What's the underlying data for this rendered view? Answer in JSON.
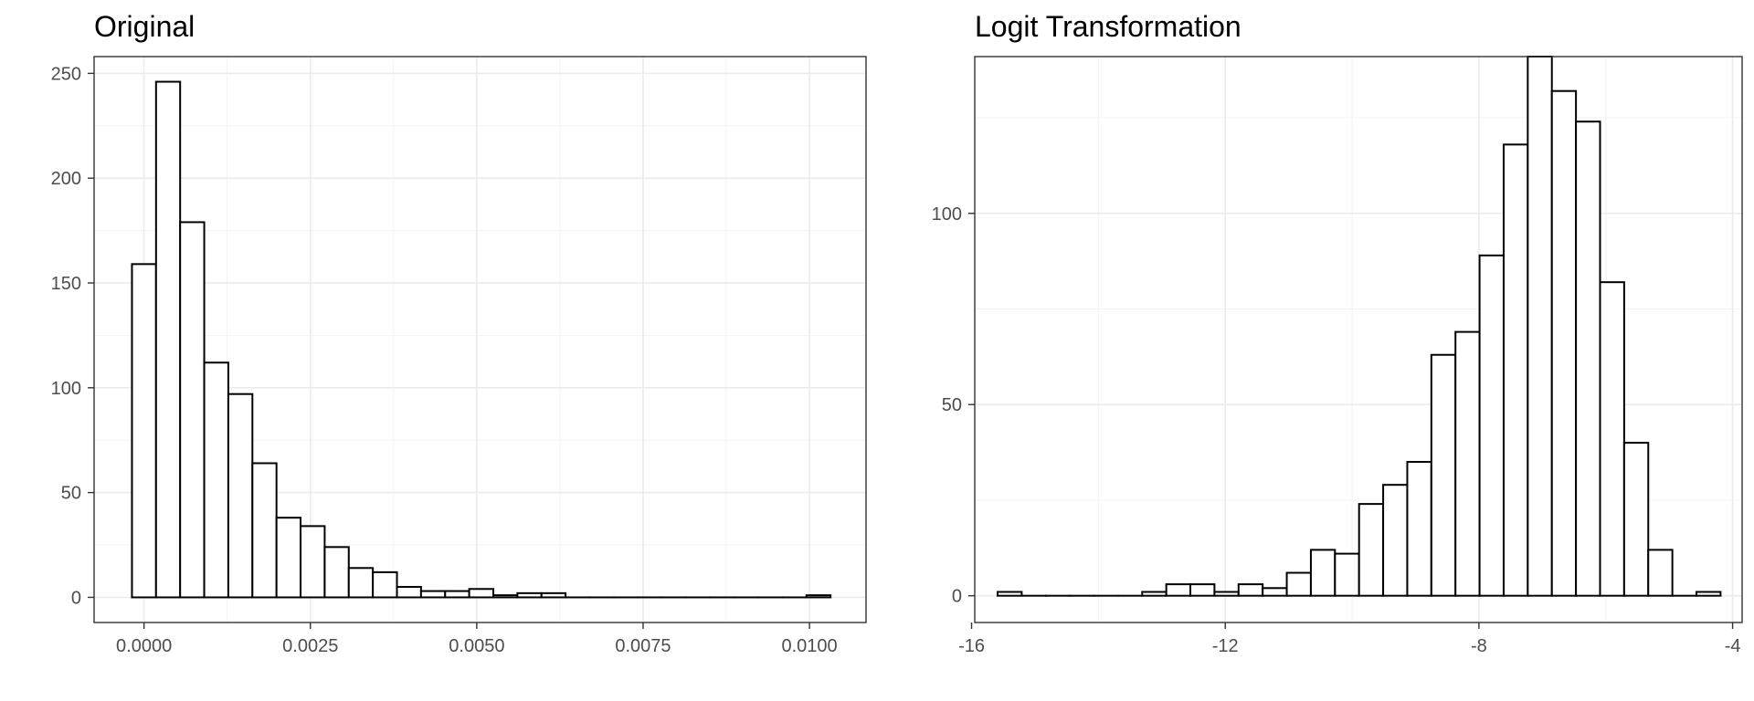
{
  "chart_data": [
    {
      "type": "bar",
      "title": "Original",
      "xlabel": "",
      "ylabel": "",
      "grid": true,
      "xlim": [
        -0.00075,
        0.01085
      ],
      "ylim": [
        -12,
        258
      ],
      "bin_width": 0.000362,
      "x_ticks": [
        0.0,
        0.0025,
        0.005,
        0.0075,
        0.01
      ],
      "x_tick_labels": [
        "0.0000",
        "0.0025",
        "0.0050",
        "0.0075",
        "0.0100"
      ],
      "y_ticks": [
        0,
        50,
        100,
        150,
        200,
        250
      ],
      "y_tick_labels": [
        "0",
        "50",
        "100",
        "150",
        "200",
        "250"
      ],
      "bin_centers": [
        0.0,
        0.000362,
        0.000724,
        0.001086,
        0.001448,
        0.00181,
        0.002172,
        0.002534,
        0.002896,
        0.003258,
        0.00362,
        0.003982,
        0.004344,
        0.004706,
        0.005068,
        0.00543,
        0.005792,
        0.006154,
        0.006516,
        0.006878,
        0.00724,
        0.007602,
        0.007964,
        0.008326,
        0.008688,
        0.00905,
        0.009412,
        0.009774,
        0.010136
      ],
      "values": [
        159,
        246,
        179,
        112,
        97,
        64,
        38,
        34,
        24,
        14,
        12,
        5,
        3,
        3,
        4,
        1,
        2,
        2,
        0,
        0,
        0,
        0,
        0,
        0,
        0,
        0,
        0,
        0,
        1
      ]
    },
    {
      "type": "bar",
      "title": "Logit Transformation",
      "xlabel": "",
      "ylabel": "",
      "grid": true,
      "xlim": [
        -15.95,
        -3.85
      ],
      "ylim": [
        -7,
        141
      ],
      "bin_width": 0.38,
      "x_ticks": [
        -16,
        -12,
        -8,
        -4
      ],
      "x_tick_labels": [
        "-16",
        "-12",
        "-8",
        "-4"
      ],
      "y_ticks": [
        0,
        50,
        100
      ],
      "y_tick_labels": [
        "0",
        "50",
        "100"
      ],
      "bin_centers": [
        -15.4,
        -15.02,
        -14.64,
        -14.26,
        -13.88,
        -13.5,
        -13.12,
        -12.74,
        -12.36,
        -11.98,
        -11.6,
        -11.22,
        -10.84,
        -10.46,
        -10.08,
        -9.7,
        -9.32,
        -8.94,
        -8.56,
        -8.18,
        -7.8,
        -7.42,
        -7.04,
        -6.66,
        -6.28,
        -5.9,
        -5.52,
        -5.14,
        -4.76,
        -4.38
      ],
      "values": [
        1,
        0,
        0,
        0,
        0,
        0,
        1,
        3,
        3,
        1,
        3,
        2,
        6,
        12,
        11,
        24,
        29,
        35,
        63,
        69,
        89,
        118,
        141,
        132,
        124,
        82,
        40,
        12,
        0,
        1
      ]
    }
  ]
}
